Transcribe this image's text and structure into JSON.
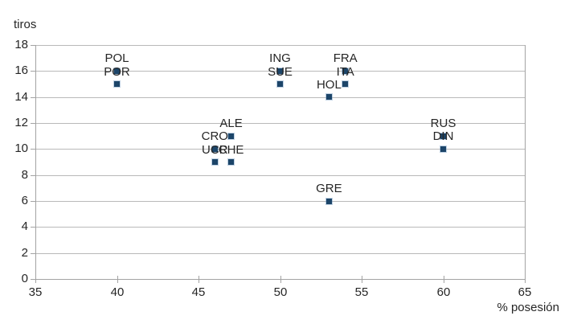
{
  "chart_data": {
    "type": "scatter",
    "title": "",
    "ylabel": "tiros",
    "xlabel": "% posesión",
    "xlim": [
      35,
      65
    ],
    "ylim": [
      0,
      18
    ],
    "x_ticks": [
      35,
      40,
      45,
      50,
      55,
      60,
      65
    ],
    "y_ticks": [
      0,
      2,
      4,
      6,
      8,
      10,
      12,
      14,
      16,
      18
    ],
    "grid": "horizontal-only",
    "legend": "none",
    "points": [
      {
        "label": "POL",
        "x": 40,
        "y": 16
      },
      {
        "label": "POR",
        "x": 40,
        "y": 15
      },
      {
        "label": "ING",
        "x": 50,
        "y": 16
      },
      {
        "label": "SUE",
        "x": 50,
        "y": 15
      },
      {
        "label": "FRA",
        "x": 54,
        "y": 16
      },
      {
        "label": "ITA",
        "x": 54,
        "y": 15
      },
      {
        "label": "HOL",
        "x": 53,
        "y": 14
      },
      {
        "label": "ALE",
        "x": 47,
        "y": 11
      },
      {
        "label": "CRO",
        "x": 46,
        "y": 10
      },
      {
        "label": "UCR",
        "x": 46,
        "y": 9
      },
      {
        "label": "CHE",
        "x": 47,
        "y": 9
      },
      {
        "label": "RUS",
        "x": 60,
        "y": 11
      },
      {
        "label": "DIN",
        "x": 60,
        "y": 10
      },
      {
        "label": "GRE",
        "x": 53,
        "y": 6
      }
    ],
    "colors": {
      "marker": "#1c4569",
      "gridline": "#b9b9b9",
      "axis": "#a3a3a3",
      "text": "#262626",
      "background": "#ffffff"
    }
  }
}
